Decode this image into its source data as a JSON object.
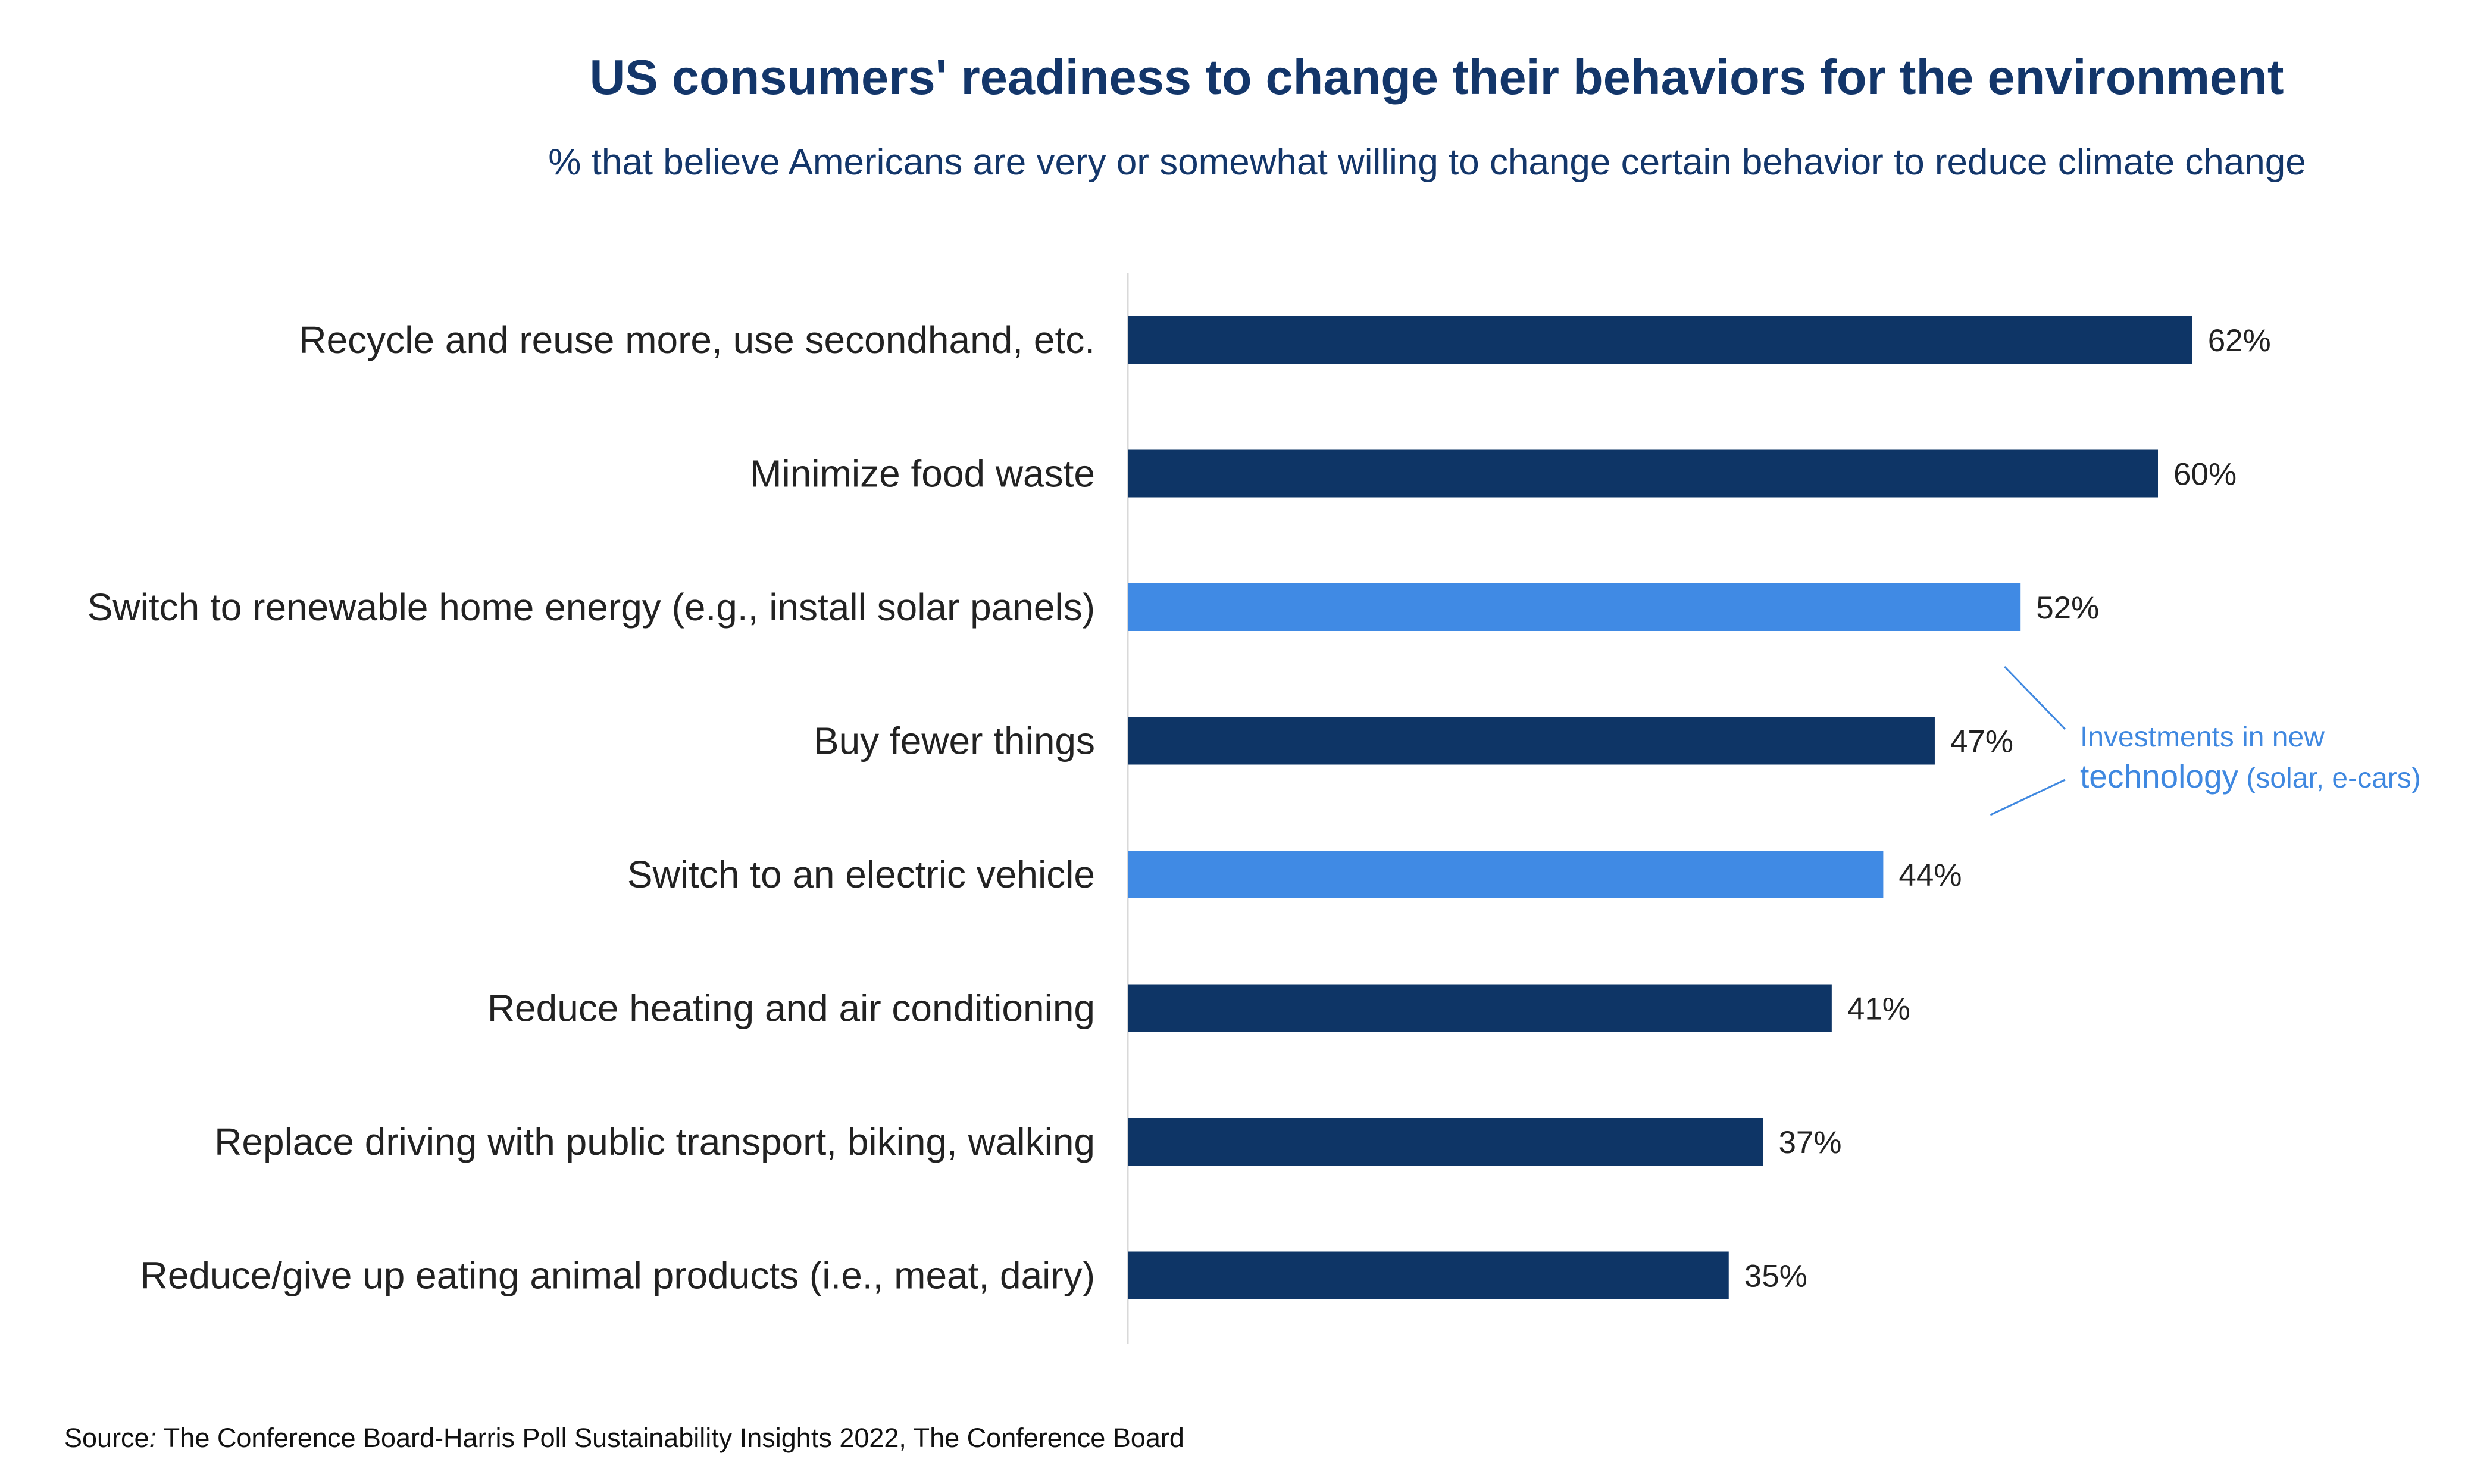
{
  "title": "US consumers' readiness to change their behaviors for the environment",
  "subtitle": "% that believe Americans are very or somewhat willing to change certain behavior to reduce climate change",
  "source": {
    "prefix": "Source",
    "colon": ":",
    "text": " The Conference Board-Harris Poll Sustainability Insights 2022, The Conference Board"
  },
  "colors": {
    "dark": "#0e3566",
    "highlight": "#408ae4",
    "annotation": "#3f88e0",
    "axis": "#d9d9d9"
  },
  "chart_data": {
    "type": "bar",
    "orientation": "horizontal",
    "title": "US consumers' readiness to change their behaviors for the environment",
    "subtitle": "% that believe Americans are very or somewhat willing to change certain behavior to reduce climate change",
    "xlabel": "",
    "ylabel": "",
    "xlim": [
      0,
      100
    ],
    "grid": false,
    "legend": "none",
    "unit": "%",
    "categories": [
      "Recycle and reuse more, use secondhand, etc.",
      "Minimize food waste",
      "Switch to renewable home energy (e.g., install solar panels)",
      "Buy fewer things",
      "Switch to an electric vehicle",
      "Reduce heating and air conditioning",
      "Replace driving with public transport, biking, walking",
      "Reduce/give up eating animal products (i.e., meat, dairy)"
    ],
    "values": [
      62,
      60,
      52,
      47,
      44,
      41,
      37,
      35
    ],
    "value_labels": [
      "62%",
      "60%",
      "52%",
      "47%",
      "44%",
      "41%",
      "37%",
      "35%"
    ],
    "highlighted": [
      false,
      false,
      true,
      false,
      true,
      false,
      false,
      false
    ],
    "annotation": {
      "line1": "Investments in new",
      "line2a": "technology",
      "line2b": " (solar, e-cars)",
      "applies_to": [
        "Switch to renewable home energy (e.g., install solar panels)",
        "Switch to an electric vehicle"
      ]
    }
  }
}
